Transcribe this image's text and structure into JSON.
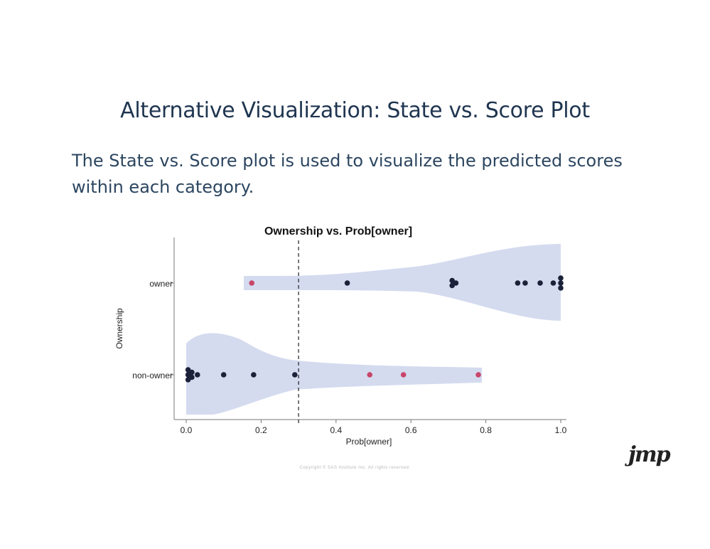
{
  "slide": {
    "title": "Alternative Visualization: State vs. Score Plot",
    "body_lines": [
      "The State vs. Score plot is used to visualize the predicted scores",
      "within each category."
    ],
    "copyright": "Copyright © SAS Institute Inc. All rights reserved.",
    "logo": "jmp"
  },
  "colors": {
    "violin": "#d4dbef",
    "point_owner": "#1a2138",
    "point_nonowner": "#c8466a",
    "axis": "#777777",
    "title": "#1f3550"
  },
  "chart_data": {
    "type": "scatter",
    "title": "Ownership vs. Prob[owner]",
    "xlabel": "Prob[owner]",
    "ylabel": "Ownership",
    "xlim": [
      0.0,
      1.0
    ],
    "x_ticks": [
      "0.0",
      "0.2",
      "0.4",
      "0.6",
      "0.8",
      "1.0"
    ],
    "categories": [
      "owner",
      "non-owner"
    ],
    "cutoff": 0.3,
    "series": [
      {
        "category": "owner",
        "points": [
          {
            "x": 0.175,
            "color": "red"
          },
          {
            "x": 0.43,
            "color": "dark"
          },
          {
            "x": 0.71,
            "color": "dark"
          },
          {
            "x": 0.71,
            "color": "dark"
          },
          {
            "x": 0.72,
            "color": "dark"
          },
          {
            "x": 0.885,
            "color": "dark"
          },
          {
            "x": 0.905,
            "color": "dark"
          },
          {
            "x": 0.945,
            "color": "dark"
          },
          {
            "x": 0.98,
            "color": "dark"
          },
          {
            "x": 1.0,
            "color": "dark"
          },
          {
            "x": 1.0,
            "color": "dark"
          },
          {
            "x": 1.0,
            "color": "dark"
          }
        ]
      },
      {
        "category": "non-owner",
        "points": [
          {
            "x": 0.005,
            "color": "dark"
          },
          {
            "x": 0.005,
            "color": "dark"
          },
          {
            "x": 0.005,
            "color": "dark"
          },
          {
            "x": 0.015,
            "color": "dark"
          },
          {
            "x": 0.015,
            "color": "dark"
          },
          {
            "x": 0.03,
            "color": "dark"
          },
          {
            "x": 0.1,
            "color": "dark"
          },
          {
            "x": 0.18,
            "color": "dark"
          },
          {
            "x": 0.29,
            "color": "dark"
          },
          {
            "x": 0.49,
            "color": "red"
          },
          {
            "x": 0.58,
            "color": "red"
          },
          {
            "x": 0.78,
            "color": "red"
          }
        ]
      }
    ],
    "grid": false
  }
}
